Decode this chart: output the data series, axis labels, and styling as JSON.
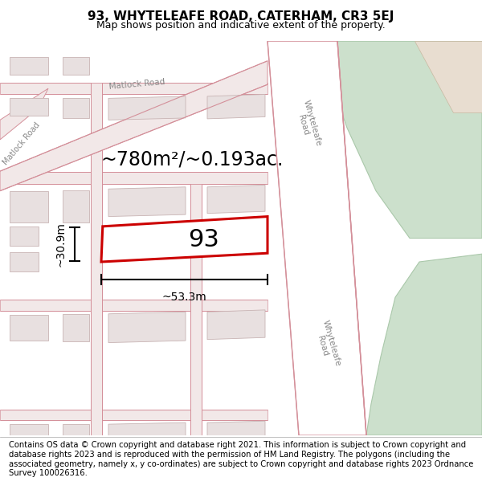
{
  "title": "93, WHYTELEAFE ROAD, CATERHAM, CR3 5EJ",
  "subtitle": "Map shows position and indicative extent of the property.",
  "footer": "Contains OS data © Crown copyright and database right 2021. This information is subject to Crown copyright and database rights 2023 and is reproduced with the permission of HM Land Registry. The polygons (including the associated geometry, namely x, y co-ordinates) are subject to Crown copyright and database rights 2023 Ordnance Survey 100026316.",
  "plot_outline_color": "#cc0000",
  "plot_label": "93",
  "area_label": "~780m²/~0.193ac.",
  "width_label": "~53.3m",
  "height_label": "~30.9m",
  "title_fontsize": 11,
  "subtitle_fontsize": 9,
  "footer_fontsize": 7.2,
  "label_fontsize": 22,
  "area_fontsize": 17,
  "dim_fontsize": 10,
  "map_bg": "#f7f0f0",
  "road_fill": "#f2e8e8",
  "road_edge": "#d4909a",
  "building_fill": "#e8e0e0",
  "building_edge": "#c8b4b4",
  "green1_fill": "#cce0cc",
  "green1_edge": "#aac8aa",
  "green2_fill": "#cce0cc",
  "tan_fill": "#e8ddd0",
  "tan_edge": "#c8b8a0"
}
